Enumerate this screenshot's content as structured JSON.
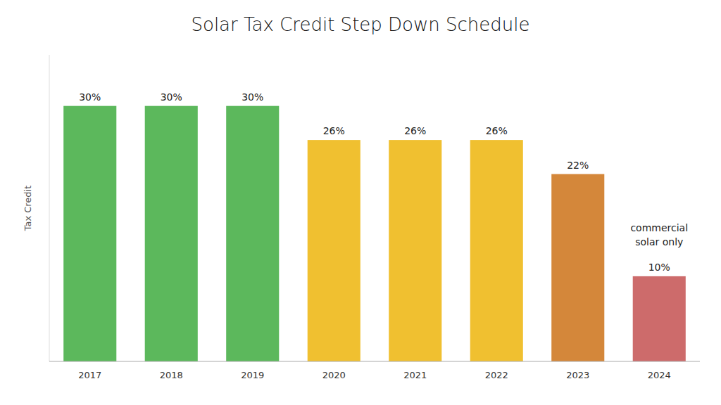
{
  "chart_data": {
    "type": "bar",
    "title": "Solar Tax Credit Step Down Schedule",
    "y_label": "Tax Credit",
    "categories": [
      "2017",
      "2018",
      "2019",
      "2020",
      "2021",
      "2022",
      "2023",
      "2024"
    ],
    "values": [
      30,
      30,
      30,
      26,
      26,
      26,
      22,
      10
    ],
    "value_labels": [
      "30%",
      "30%",
      "30%",
      "26%",
      "26%",
      "26%",
      "22%",
      "10%"
    ],
    "colors": [
      "#5cb85c",
      "#5cb85c",
      "#5cb85c",
      "#f0c030",
      "#f0c030",
      "#f0c030",
      "#d4873a",
      "#cd6b6b"
    ],
    "annotations": [
      {
        "category": "2024",
        "lines": [
          "commercial",
          "solar only"
        ]
      }
    ],
    "ylim": [
      0,
      36
    ],
    "yticks": [],
    "tick_labels": "x",
    "data_labels": true,
    "grid": false
  }
}
